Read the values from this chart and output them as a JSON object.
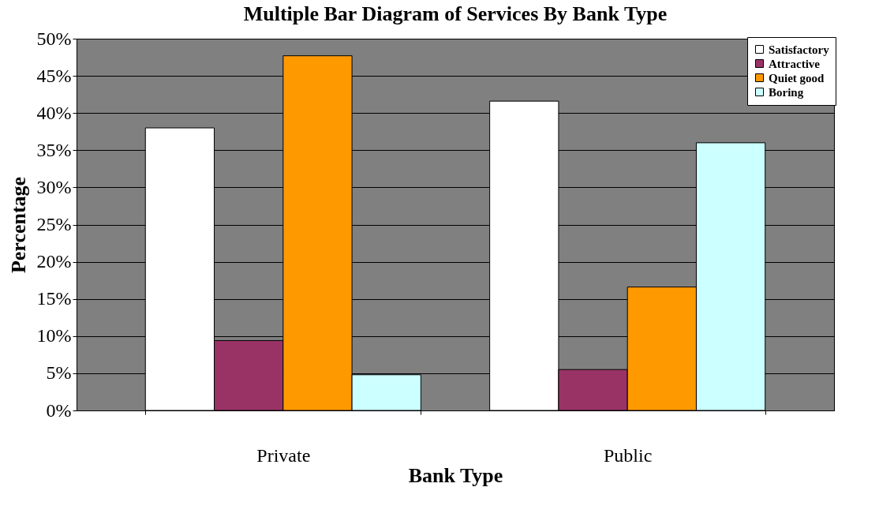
{
  "chart_data": {
    "type": "bar",
    "title": "Multiple Bar Diagram of Services By Bank Type",
    "xlabel": "Bank Type",
    "ylabel": "Percentage",
    "categories": [
      "Private",
      "Public"
    ],
    "series": [
      {
        "name": "Satisfactory",
        "color": "#ffffff",
        "values": [
          38.0,
          41.6
        ]
      },
      {
        "name": "Attractive",
        "color": "#993366",
        "values": [
          9.4,
          5.5
        ]
      },
      {
        "name": "Quiet good",
        "color": "#ff9900",
        "values": [
          47.7,
          16.6
        ]
      },
      {
        "name": "Boring",
        "color": "#ccffff",
        "values": [
          4.8,
          36.0
        ]
      }
    ],
    "ylim": [
      0,
      50
    ],
    "yticks": [
      {
        "value": 0,
        "label": "0%"
      },
      {
        "value": 5,
        "label": "5%"
      },
      {
        "value": 10,
        "label": "10%"
      },
      {
        "value": 15,
        "label": "15%"
      },
      {
        "value": 20,
        "label": "20%"
      },
      {
        "value": 25,
        "label": "25%"
      },
      {
        "value": 30,
        "label": "30%"
      },
      {
        "value": 35,
        "label": "35%"
      },
      {
        "value": 40,
        "label": "40%"
      },
      {
        "value": 45,
        "label": "45%"
      },
      {
        "value": 50,
        "label": "50%"
      }
    ],
    "grid": "y",
    "legend": "top right"
  }
}
